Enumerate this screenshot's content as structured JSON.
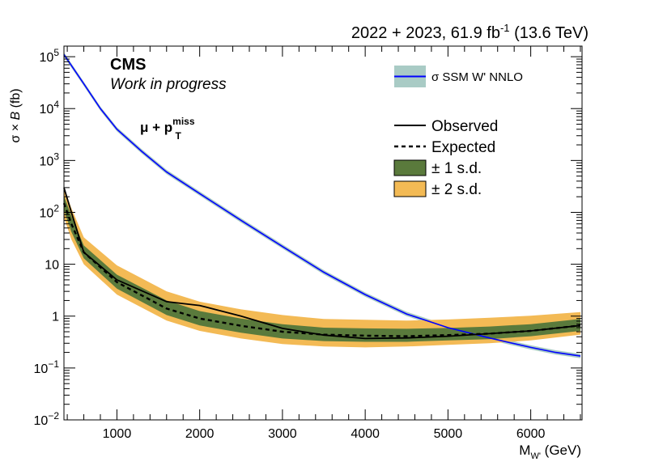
{
  "header": {
    "lumi_main": "2022 + 2023, 61.9 fb",
    "lumi_sup": "-1",
    "lumi_energy": " (13.6 TeV)"
  },
  "labels": {
    "experiment": "CMS",
    "status": "Work in progress",
    "channel_main": "μ + p",
    "channel_sup": "miss",
    "channel_sub": "T"
  },
  "legend": {
    "theory": "σ SSM W' NNLO",
    "observed": "Observed",
    "expected": "Expected",
    "band1": "± 1 s.d.",
    "band2": "± 2 s.d."
  },
  "axes": {
    "x_title_main": "M",
    "x_title_sub": "W'",
    "x_title_unit": " (GeV)",
    "y_title_sym": "σ × ",
    "y_title_b": "B",
    "y_title_unit": "  (fb)",
    "x_ticks": [
      "1000",
      "2000",
      "3000",
      "4000",
      "5000",
      "6000"
    ],
    "y_ticks": [
      {
        "base": "10",
        "exp": "−2"
      },
      {
        "base": "10",
        "exp": "−1"
      },
      {
        "base": "1",
        "exp": ""
      },
      {
        "base": "10",
        "exp": ""
      },
      {
        "base": "10",
        "exp": "2"
      },
      {
        "base": "10",
        "exp": "3"
      },
      {
        "base": "10",
        "exp": "4"
      },
      {
        "base": "10",
        "exp": "5"
      }
    ]
  },
  "colors": {
    "theory_line": "#0000ff",
    "theory_band": "#a9cbc5",
    "band1": "#5a7a3c",
    "band2": "#f3ba55",
    "observed": "#000000",
    "expected": "#000000"
  },
  "chart_data": {
    "type": "line",
    "xlabel": "M_W' (GeV)",
    "ylabel": "σ × B (fb)",
    "xlim": [
      360,
      6620
    ],
    "ylim": [
      0.01,
      160000
    ],
    "log_y": true,
    "grid": false,
    "legend_position": "top-right",
    "series": [
      {
        "name": "σ SSM W' NNLO",
        "x": [
          360,
          600,
          800,
          1000,
          1300,
          1600,
          2000,
          2500,
          3000,
          3500,
          4000,
          4500,
          5000,
          5500,
          6000,
          6300,
          6600
        ],
        "y": [
          110000,
          30000,
          10000,
          4000,
          1500,
          600,
          230,
          70,
          22,
          7,
          2.6,
          1.1,
          0.6,
          0.38,
          0.25,
          0.2,
          0.17
        ]
      },
      {
        "name": "Observed",
        "x": [
          360,
          450,
          600,
          1000,
          1600,
          2000,
          2500,
          3000,
          3500,
          4000,
          4500,
          5000,
          5500,
          6000,
          6600
        ],
        "y": [
          300,
          100,
          17,
          5,
          1.9,
          1.6,
          1.0,
          0.58,
          0.43,
          0.37,
          0.38,
          0.41,
          0.46,
          0.52,
          0.66
        ]
      },
      {
        "name": "Expected",
        "x": [
          360,
          450,
          600,
          1000,
          1600,
          2000,
          2500,
          3000,
          3500,
          4000,
          4500,
          5000,
          5500,
          6000,
          6600
        ],
        "y": [
          150,
          60,
          17,
          4.5,
          1.4,
          0.9,
          0.65,
          0.5,
          0.44,
          0.42,
          0.41,
          0.43,
          0.46,
          0.52,
          0.66
        ]
      },
      {
        "name": "± 1 s.d.",
        "x": [
          360,
          450,
          600,
          1000,
          1600,
          2000,
          2500,
          3000,
          3500,
          4000,
          4500,
          5000,
          5500,
          6000,
          6600
        ],
        "low": [
          110,
          42,
          13,
          3.4,
          1.05,
          0.66,
          0.48,
          0.37,
          0.33,
          0.32,
          0.32,
          0.34,
          0.36,
          0.41,
          0.52
        ],
        "high": [
          210,
          85,
          23,
          6.3,
          2.0,
          1.25,
          0.9,
          0.7,
          0.6,
          0.58,
          0.57,
          0.59,
          0.63,
          0.7,
          0.88
        ]
      },
      {
        "name": "± 2 s.d.",
        "x": [
          360,
          450,
          600,
          1000,
          1600,
          2000,
          2500,
          3000,
          3500,
          4000,
          4500,
          5000,
          5500,
          6000,
          6600
        ],
        "low": [
          80,
          30,
          10,
          2.6,
          0.82,
          0.52,
          0.37,
          0.29,
          0.26,
          0.25,
          0.26,
          0.28,
          0.3,
          0.34,
          0.44
        ],
        "high": [
          300,
          120,
          33,
          9.5,
          3.0,
          1.9,
          1.35,
          1.05,
          0.88,
          0.85,
          0.82,
          0.86,
          0.93,
          1.02,
          1.2
        ]
      }
    ]
  }
}
